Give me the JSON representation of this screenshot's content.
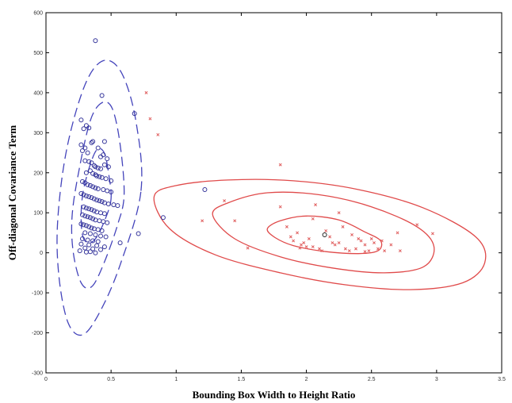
{
  "chart_data": {
    "type": "scatter",
    "title": "",
    "xlabel": "Bounding Box Width to Height Ratio",
    "ylabel": "Off-diagonal Covariance Term",
    "xlim": [
      0,
      3.5
    ],
    "ylim": [
      -300,
      600
    ],
    "xticks": [
      0,
      0.5,
      1,
      1.5,
      2,
      2.5,
      3,
      3.5
    ],
    "xtick_labels": [
      "0",
      "0.5",
      "1",
      "1.5",
      "2",
      "2.5",
      "3",
      "3.5"
    ],
    "yticks": [
      -300,
      -200,
      -100,
      0,
      100,
      200,
      300,
      400,
      500,
      600
    ],
    "ytick_labels": [
      "-300",
      "-200",
      "-100",
      "0",
      "100",
      "200",
      "300",
      "400",
      "500",
      "600"
    ],
    "grid": false,
    "legend": "none",
    "series": [
      {
        "marker": "circle",
        "color": "#33339a",
        "x": [
          0.38,
          0.43,
          0.27,
          0.31,
          0.29,
          0.33,
          0.35,
          0.36,
          0.27,
          0.3,
          0.28,
          0.32,
          0.4,
          0.42,
          0.44,
          0.45,
          0.47,
          0.5,
          0.48,
          0.3,
          0.33,
          0.35,
          0.37,
          0.38,
          0.4,
          0.42,
          0.45,
          0.31,
          0.34,
          0.36,
          0.38,
          0.39,
          0.41,
          0.43,
          0.46,
          0.28,
          0.3,
          0.32,
          0.34,
          0.36,
          0.38,
          0.4,
          0.44,
          0.47,
          0.5,
          0.27,
          0.29,
          0.31,
          0.33,
          0.35,
          0.37,
          0.39,
          0.41,
          0.43,
          0.45,
          0.48,
          0.52,
          0.55,
          0.29,
          0.31,
          0.33,
          0.35,
          0.37,
          0.39,
          0.42,
          0.45,
          0.28,
          0.3,
          0.32,
          0.34,
          0.36,
          0.38,
          0.41,
          0.44,
          0.47,
          0.27,
          0.29,
          0.31,
          0.33,
          0.35,
          0.37,
          0.4,
          0.43,
          0.3,
          0.34,
          0.38,
          0.42,
          0.46,
          0.28,
          0.32,
          0.36,
          0.4,
          0.27,
          0.33,
          0.39,
          0.45,
          0.3,
          0.36,
          0.42,
          0.26,
          0.34,
          0.31,
          0.38,
          0.57,
          0.68,
          0.71,
          0.9,
          1.22
        ],
        "y": [
          530,
          393,
          332,
          318,
          310,
          312,
          275,
          278,
          270,
          262,
          255,
          250,
          262,
          240,
          245,
          278,
          235,
          180,
          215,
          230,
          228,
          225,
          218,
          215,
          212,
          210,
          220,
          200,
          205,
          198,
          195,
          192,
          190,
          188,
          185,
          178,
          175,
          170,
          168,
          165,
          162,
          160,
          158,
          155,
          152,
          148,
          145,
          142,
          140,
          138,
          135,
          132,
          130,
          128,
          125,
          122,
          120,
          118,
          115,
          112,
          110,
          108,
          105,
          102,
          100,
          98,
          95,
          92,
          90,
          88,
          85,
          82,
          80,
          78,
          75,
          72,
          70,
          68,
          65,
          62,
          60,
          58,
          55,
          50,
          48,
          45,
          42,
          40,
          35,
          32,
          30,
          28,
          22,
          20,
          18,
          15,
          12,
          10,
          8,
          5,
          3,
          2,
          0,
          25,
          348,
          48,
          88,
          158
        ]
      },
      {
        "marker": "x",
        "color": "#e06060",
        "x": [
          0.77,
          0.86,
          0.8,
          1.2,
          1.37,
          1.45,
          1.55,
          1.8,
          1.8,
          1.85,
          1.88,
          1.9,
          1.93,
          1.96,
          1.98,
          2.0,
          2.02,
          2.05,
          2.07,
          2.1,
          2.12,
          2.15,
          2.18,
          2.2,
          2.22,
          2.25,
          2.28,
          2.3,
          2.33,
          2.35,
          2.38,
          2.4,
          2.42,
          2.45,
          2.48,
          2.5,
          2.52,
          2.55,
          2.58,
          2.6,
          2.65,
          2.7,
          2.72,
          2.85,
          2.97,
          1.95,
          2.05,
          2.25,
          2.45
        ],
        "y": [
          400,
          295,
          335,
          80,
          130,
          80,
          12,
          220,
          115,
          65,
          40,
          30,
          50,
          20,
          25,
          15,
          35,
          85,
          120,
          10,
          5,
          55,
          40,
          25,
          20,
          25,
          65,
          10,
          5,
          45,
          10,
          35,
          30,
          20,
          5,
          35,
          25,
          10,
          30,
          5,
          20,
          50,
          5,
          70,
          48,
          12,
          15,
          100,
          3
        ]
      },
      {
        "marker": "circle",
        "color": "#222222",
        "x": [
          2.14
        ],
        "y": [
          45
        ]
      }
    ],
    "ellipses": [
      {
        "group": "blue",
        "color": "#4444bb",
        "style": "dashed",
        "center": [
          0.38,
          140
        ],
        "curves": [
          [
            [
              0.5,
              135
            ],
            [
              0.48,
              200
            ],
            [
              0.45,
              248
            ],
            [
              0.4,
              260
            ],
            [
              0.35,
              230
            ],
            [
              0.29,
              160
            ],
            [
              0.27,
              100
            ],
            [
              0.28,
              45
            ],
            [
              0.32,
              25
            ],
            [
              0.38,
              35
            ],
            [
              0.45,
              80
            ],
            [
              0.5,
              135
            ]
          ],
          [
            [
              0.6,
              145
            ],
            [
              0.57,
              270
            ],
            [
              0.51,
              360
            ],
            [
              0.43,
              375
            ],
            [
              0.34,
              330
            ],
            [
              0.25,
              200
            ],
            [
              0.2,
              90
            ],
            [
              0.21,
              0
            ],
            [
              0.27,
              -75
            ],
            [
              0.35,
              -85
            ],
            [
              0.44,
              -30
            ],
            [
              0.55,
              70
            ],
            [
              0.6,
              145
            ]
          ],
          [
            [
              0.73,
              155
            ],
            [
              0.69,
              330
            ],
            [
              0.58,
              450
            ],
            [
              0.44,
              480
            ],
            [
              0.3,
              420
            ],
            [
              0.16,
              260
            ],
            [
              0.09,
              80
            ],
            [
              0.1,
              -60
            ],
            [
              0.17,
              -175
            ],
            [
              0.28,
              -205
            ],
            [
              0.41,
              -150
            ],
            [
              0.57,
              -30
            ],
            [
              0.73,
              155
            ]
          ]
        ]
      },
      {
        "group": "red",
        "color": "#e04a4a",
        "style": "solid",
        "center": [
          2.15,
          42
        ],
        "curves": [
          [
            [
              1.7,
              60
            ],
            [
              1.8,
              80
            ],
            [
              2.0,
              92
            ],
            [
              2.25,
              82
            ],
            [
              2.45,
              52
            ],
            [
              2.57,
              30
            ],
            [
              2.55,
              5
            ],
            [
              2.4,
              -2
            ],
            [
              2.15,
              3
            ],
            [
              1.9,
              18
            ],
            [
              1.76,
              38
            ],
            [
              1.7,
              60
            ]
          ],
          [
            [
              1.28,
              95
            ],
            [
              1.4,
              125
            ],
            [
              1.7,
              150
            ],
            [
              2.1,
              145
            ],
            [
              2.5,
              115
            ],
            [
              2.85,
              65
            ],
            [
              2.98,
              15
            ],
            [
              2.9,
              -35
            ],
            [
              2.6,
              -50
            ],
            [
              2.2,
              -38
            ],
            [
              1.8,
              -10
            ],
            [
              1.45,
              35
            ],
            [
              1.28,
              95
            ]
          ],
          [
            [
              0.83,
              140
            ],
            [
              1.0,
              168
            ],
            [
              1.4,
              182
            ],
            [
              1.9,
              180
            ],
            [
              2.4,
              158
            ],
            [
              2.9,
              112
            ],
            [
              3.3,
              40
            ],
            [
              3.37,
              -25
            ],
            [
              3.2,
              -75
            ],
            [
              2.8,
              -92
            ],
            [
              2.3,
              -80
            ],
            [
              1.8,
              -50
            ],
            [
              1.3,
              -5
            ],
            [
              0.95,
              60
            ],
            [
              0.83,
              140
            ]
          ]
        ]
      }
    ]
  }
}
